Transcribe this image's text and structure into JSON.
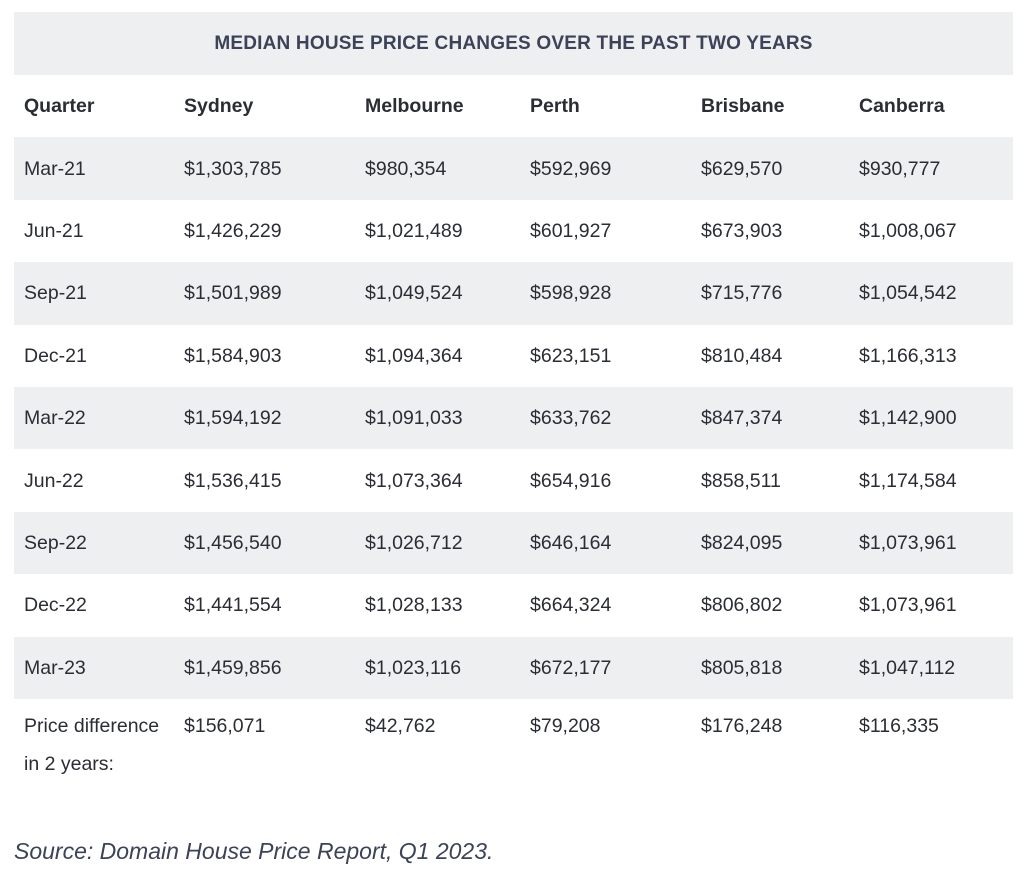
{
  "table": {
    "title": "MEDIAN HOUSE PRICE CHANGES OVER THE PAST TWO YEARS",
    "headers": [
      "Quarter",
      "Sydney",
      "Melbourne",
      "Perth",
      "Brisbane",
      "Canberra"
    ],
    "rows": [
      [
        "Mar-21",
        "$1,303,785",
        "$980,354",
        "$592,969",
        "$629,570",
        "$930,777"
      ],
      [
        "Jun-21",
        "$1,426,229",
        "$1,021,489",
        "$601,927",
        "$673,903",
        "$1,008,067"
      ],
      [
        "Sep-21",
        "$1,501,989",
        "$1,049,524",
        "$598,928",
        "$715,776",
        "$1,054,542"
      ],
      [
        "Dec-21",
        "$1,584,903",
        "$1,094,364",
        "$623,151",
        "$810,484",
        "$1,166,313"
      ],
      [
        "Mar-22",
        "$1,594,192",
        "$1,091,033",
        "$633,762",
        "$847,374",
        "$1,142,900"
      ],
      [
        "Jun-22",
        "$1,536,415",
        "$1,073,364",
        "$654,916",
        "$858,511",
        "$1,174,584"
      ],
      [
        "Sep-22",
        "$1,456,540",
        "$1,026,712",
        "$646,164",
        "$824,095",
        "$1,073,961"
      ],
      [
        "Dec-22",
        "$1,441,554",
        "$1,028,133",
        "$664,324",
        "$806,802",
        "$1,073,961"
      ],
      [
        "Mar-23",
        "$1,459,856",
        "$1,023,116",
        "$672,177",
        "$805,818",
        "$1,047,112"
      ],
      [
        "Price difference in 2 years:",
        "$156,071",
        "$42,762",
        "$79,208",
        "$176,248",
        "$116,335"
      ]
    ]
  },
  "source": "Source: Domain House Price Report, Q1 2023."
}
